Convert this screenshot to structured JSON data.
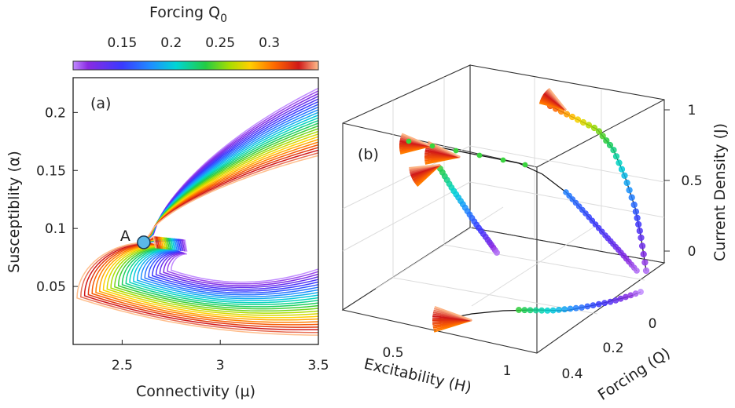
{
  "colorbar": {
    "title": "Forcing Q",
    "title_sub": "0",
    "range": [
      0.1,
      0.35
    ],
    "ticks": [
      0.15,
      0.2,
      0.25,
      0.3
    ],
    "tick_labels": [
      "0.15",
      "0.2",
      "0.25",
      "0.3"
    ]
  },
  "chart_data": [
    {
      "type": "line",
      "panel": "(a)",
      "title": "",
      "xlabel": "Connectivity (μ)",
      "ylabel": "Susceptiblity (α)",
      "xlim": [
        2.25,
        3.5
      ],
      "ylim": [
        0.0,
        0.23
      ],
      "xticks": [
        2.5,
        3,
        3.5
      ],
      "xtick_labels": [
        "2.5",
        "3",
        "3.5"
      ],
      "yticks": [
        0.05,
        0.1,
        0.15,
        0.2
      ],
      "ytick_labels": [
        "0.05",
        "0.1",
        "0.15",
        "0.2"
      ],
      "annotation": {
        "label": "A",
        "x": 2.61,
        "y": 0.088
      },
      "series_description": "One fold-bifurcation curve per forcing value Q0 from 0.10 to 0.35, colored by the colorbar",
      "q_values": [
        0.1,
        0.11,
        0.12,
        0.13,
        0.14,
        0.15,
        0.16,
        0.17,
        0.18,
        0.19,
        0.2,
        0.21,
        0.22,
        0.23,
        0.24,
        0.25,
        0.26,
        0.27,
        0.28,
        0.29,
        0.3,
        0.31,
        0.32,
        0.33,
        0.34,
        0.35
      ],
      "cusp_point": [
        2.61,
        0.088
      ],
      "upper_branch_end_at_x_3_5": [
        0.225,
        0.165
      ],
      "lower_branch_left_x_range": [
        2.27,
        2.75
      ],
      "lower_branch_end_at_x_3_5": [
        0.068,
        0.008
      ]
    },
    {
      "type": "scatter",
      "panel": "(b)",
      "projection": "3d",
      "xlabel": "Excitability (H)",
      "ylabel": "Forcing (Q)",
      "zlabel": "Current Density (J)",
      "xticks": [
        0.5,
        1
      ],
      "xtick_labels": [
        "0.5",
        "1"
      ],
      "yticks": [
        0,
        0.2,
        0.4
      ],
      "ytick_labels": [
        "0",
        "0.2",
        "0.4"
      ],
      "zticks": [
        0,
        0.5,
        1
      ],
      "ztick_labels": [
        "0",
        "0.5",
        "1"
      ],
      "xlim": [
        0.25,
        1.1
      ],
      "ylim": [
        -0.1,
        0.45
      ],
      "zlim": [
        -0.2,
        1.1
      ],
      "curve_description": "Bifurcation branches with colored markers by Q, green marker dots and black dotted trace, plus projections on the box walls",
      "curve_points_HQJ": [
        [
          0.85,
          -0.08,
          0.02
        ],
        [
          0.8,
          -0.05,
          0.08
        ],
        [
          0.75,
          -0.02,
          0.15
        ],
        [
          0.7,
          0.02,
          0.22
        ],
        [
          0.65,
          0.06,
          0.3
        ],
        [
          0.6,
          0.1,
          0.38
        ],
        [
          0.55,
          0.13,
          0.46
        ],
        [
          0.5,
          0.16,
          0.53
        ],
        [
          0.47,
          0.2,
          0.6
        ],
        [
          0.45,
          0.25,
          0.66
        ],
        [
          0.44,
          0.3,
          0.72
        ],
        [
          0.43,
          0.35,
          0.79
        ]
      ]
    }
  ]
}
